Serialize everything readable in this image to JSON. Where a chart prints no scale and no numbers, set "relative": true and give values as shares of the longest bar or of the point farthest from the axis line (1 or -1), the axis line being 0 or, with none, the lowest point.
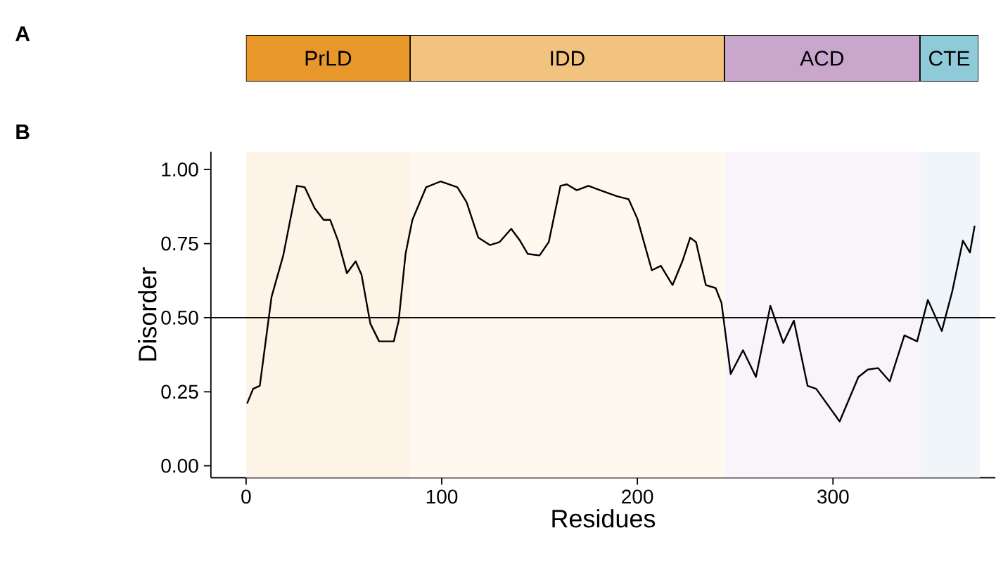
{
  "chart_data": [
    {
      "type": "bar",
      "annotations": [
        "A"
      ],
      "orientation": "horizontal",
      "stacked": true,
      "categories": [
        null
      ],
      "relative": true,
      "series": [
        {
          "name": "PrLD",
          "color": "#e8972b",
          "values": [
            0.224
          ]
        },
        {
          "name": "IDD",
          "color": "#f2c27f",
          "values": [
            0.429
          ]
        },
        {
          "name": "ACD",
          "color": "#c9a6cc",
          "values": [
            0.267
          ]
        },
        {
          "name": "CTE",
          "color": "#8ecad8",
          "values": [
            0.08
          ]
        }
      ]
    },
    {
      "type": "line",
      "annotations": [
        "B"
      ],
      "xlabel": "Residues",
      "ylabel": "Disorder",
      "xlim": [
        -18,
        383
      ],
      "ylim": [
        -0.04,
        1.06
      ],
      "xticks": [
        0,
        100,
        200,
        300
      ],
      "yticks": [
        {
          "value": 0,
          "label": "0.00"
        },
        {
          "value": 0.25,
          "label": "0.25"
        },
        {
          "value": 0.5,
          "label": "0.50"
        },
        {
          "value": 0.75,
          "label": "0.75"
        },
        {
          "value": 1,
          "label": "1.00"
        }
      ],
      "grid": false,
      "marker": "none",
      "line_style": "solid",
      "ref_lines": [
        {
          "axis": "y",
          "value": 0.5,
          "color": "#000000"
        }
      ],
      "bands": [
        {
          "axis": "x",
          "from": 0,
          "to": 84,
          "color": "#fdf3e7"
        },
        {
          "axis": "x",
          "from": 84,
          "to": 245,
          "color": "#fef8ef"
        },
        {
          "axis": "x",
          "from": 245,
          "to": 345,
          "color": "#f8f4fa"
        },
        {
          "axis": "x",
          "from": 345,
          "to": 375,
          "color": "#f0f5f9"
        }
      ],
      "series": [
        {
          "color": "#000000",
          "x": [
            0.5,
            3.6,
            7,
            13,
            19,
            26,
            30,
            35,
            39.6,
            43,
            47,
            51.5,
            56,
            59,
            63.5,
            68,
            75.5,
            78,
            81.5,
            85,
            92,
            99.5,
            108,
            112.7,
            118.7,
            124.7,
            129.5,
            135.5,
            140,
            144,
            150,
            154.7,
            160.7,
            164,
            169,
            175,
            181,
            189.5,
            195.5,
            200,
            207.4,
            212,
            218,
            223,
            227,
            230,
            235,
            240,
            243,
            247.7,
            254,
            260.6,
            268,
            274.6,
            280,
            287,
            291.4,
            303.4,
            313,
            317.8,
            323,
            329,
            336.5,
            343,
            348.5,
            355.6,
            361,
            366.4,
            370,
            372.4
          ],
          "values": [
            0.21,
            0.26,
            0.27,
            0.57,
            0.71,
            0.945,
            0.94,
            0.87,
            0.83,
            0.83,
            0.76,
            0.65,
            0.69,
            0.645,
            0.48,
            0.42,
            0.42,
            0.49,
            0.715,
            0.83,
            0.94,
            0.96,
            0.94,
            0.89,
            0.77,
            0.745,
            0.755,
            0.8,
            0.76,
            0.715,
            0.71,
            0.755,
            0.945,
            0.95,
            0.93,
            0.945,
            0.93,
            0.91,
            0.9,
            0.834,
            0.66,
            0.675,
            0.61,
            0.69,
            0.77,
            0.755,
            0.61,
            0.6,
            0.55,
            0.31,
            0.39,
            0.3,
            0.54,
            0.415,
            0.49,
            0.27,
            0.26,
            0.15,
            0.3,
            0.325,
            0.33,
            0.285,
            0.44,
            0.42,
            0.56,
            0.455,
            0.59,
            0.76,
            0.72,
            0.81
          ]
        }
      ]
    }
  ]
}
